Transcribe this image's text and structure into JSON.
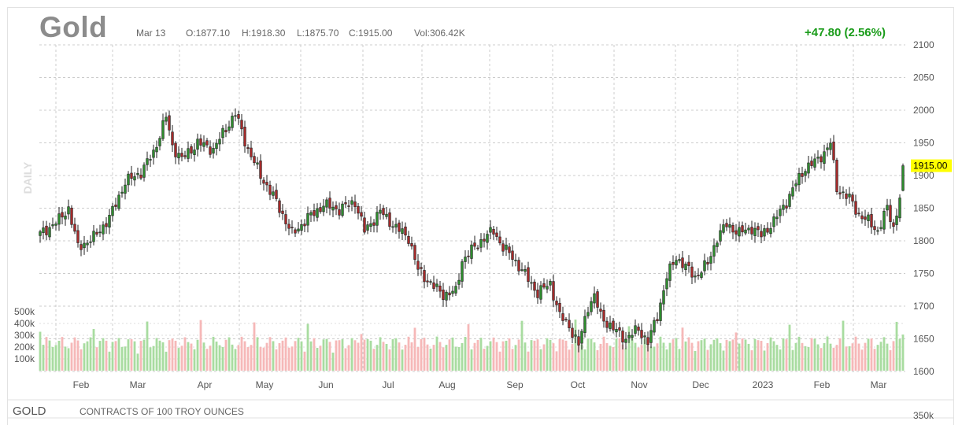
{
  "header": {
    "symbol": "Gold",
    "date": "Mar 13",
    "open": "O:1877.10",
    "high": "H:1918.30",
    "low": "L:1875.70",
    "close": "C:1915.00",
    "volume": "Vol:306.42K",
    "change": "+47.80 (2.56%)"
  },
  "footer": {
    "symbol": "GOLD",
    "description": "CONTRACTS OF 100 TROY OUNCES"
  },
  "colors": {
    "up": "#2e8b2e",
    "down": "#a52a2a",
    "vol_up": "#a8dca0",
    "vol_down": "#f6b8b8",
    "grid": "#cccccc",
    "last_price_bg": "#ffff00",
    "change": "#1a9c1a"
  },
  "chart_data": {
    "type": "candlestick",
    "period_label": "DAILY",
    "y_ticks": [
      "1600",
      "1650",
      "1700",
      "1750",
      "1800",
      "1850",
      "1900",
      "1950",
      "2000",
      "2050",
      "2100"
    ],
    "ylim": [
      1600,
      2100
    ],
    "volume_ticks": [
      "100k",
      "200k",
      "300k",
      "400k",
      "500k"
    ],
    "x_ticks": [
      "Feb",
      "Mar",
      "Apr",
      "May",
      "Jun",
      "Jul",
      "Aug",
      "Sep",
      "Oct",
      "Nov",
      "Dec",
      "2023",
      "Feb",
      "Mar"
    ],
    "last_price": "1915.00",
    "anchors": [
      [
        0,
        1810
      ],
      [
        6,
        1832
      ],
      [
        9,
        1850
      ],
      [
        12,
        1790
      ],
      [
        17,
        1805
      ],
      [
        22,
        1835
      ],
      [
        27,
        1890
      ],
      [
        32,
        1905
      ],
      [
        36,
        1935
      ],
      [
        40,
        1990
      ],
      [
        42,
        1945
      ],
      [
        45,
        1925
      ],
      [
        50,
        1950
      ],
      [
        55,
        1940
      ],
      [
        60,
        1980
      ],
      [
        62,
        1995
      ],
      [
        66,
        1940
      ],
      [
        70,
        1900
      ],
      [
        75,
        1860
      ],
      [
        80,
        1810
      ],
      [
        85,
        1835
      ],
      [
        90,
        1855
      ],
      [
        95,
        1848
      ],
      [
        100,
        1860
      ],
      [
        103,
        1815
      ],
      [
        108,
        1845
      ],
      [
        113,
        1820
      ],
      [
        117,
        1805
      ],
      [
        120,
        1755
      ],
      [
        125,
        1730
      ],
      [
        128,
        1718
      ],
      [
        132,
        1722
      ],
      [
        134,
        1770
      ],
      [
        138,
        1790
      ],
      [
        141,
        1805
      ],
      [
        144,
        1815
      ],
      [
        147,
        1790
      ],
      [
        150,
        1775
      ],
      [
        154,
        1748
      ],
      [
        158,
        1720
      ],
      [
        162,
        1735
      ],
      [
        165,
        1685
      ],
      [
        168,
        1670
      ],
      [
        171,
        1640
      ],
      [
        174,
        1700
      ],
      [
        176,
        1715
      ],
      [
        178,
        1685
      ],
      [
        182,
        1665
      ],
      [
        186,
        1650
      ],
      [
        190,
        1665
      ],
      [
        193,
        1645
      ],
      [
        196,
        1685
      ],
      [
        199,
        1745
      ],
      [
        202,
        1775
      ],
      [
        205,
        1760
      ],
      [
        208,
        1745
      ],
      [
        212,
        1765
      ],
      [
        215,
        1805
      ],
      [
        218,
        1825
      ],
      [
        222,
        1812
      ],
      [
        226,
        1820
      ],
      [
        229,
        1808
      ],
      [
        233,
        1830
      ],
      [
        237,
        1860
      ],
      [
        240,
        1888
      ],
      [
        243,
        1912
      ],
      [
        246,
        1920
      ],
      [
        249,
        1935
      ],
      [
        251,
        1950
      ],
      [
        253,
        1880
      ],
      [
        257,
        1865
      ],
      [
        260,
        1840
      ],
      [
        263,
        1830
      ],
      [
        266,
        1815
      ],
      [
        269,
        1850
      ],
      [
        271,
        1820
      ],
      [
        273,
        1867
      ],
      [
        274,
        1915
      ]
    ],
    "ohlc_last": {
      "open": 1877.1,
      "high": 1918.3,
      "low": 1875.7,
      "close": 1915.0,
      "volume": 306420
    }
  }
}
